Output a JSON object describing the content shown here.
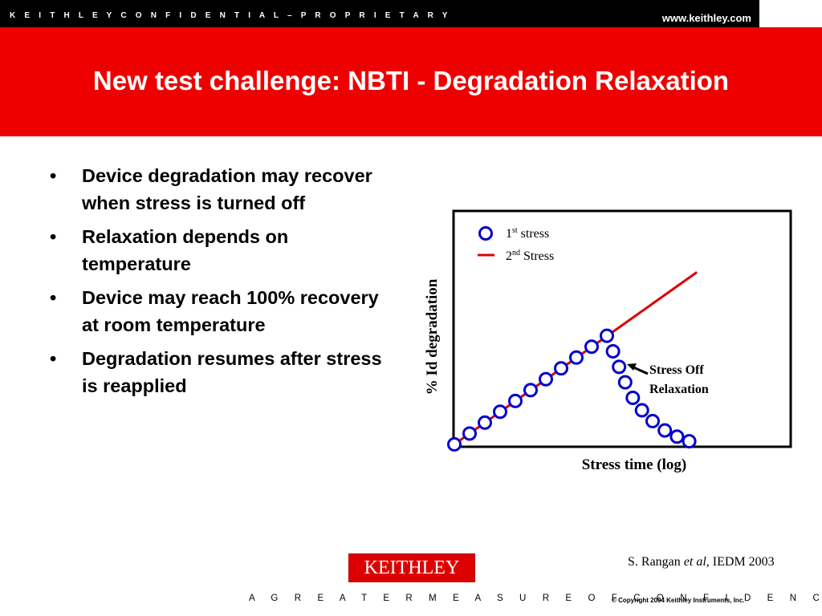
{
  "header": {
    "confidential": "K E I T H L E Y   C O N F I D E N T I A L – P R O P R I E T A R Y",
    "url": "www.keithley.com",
    "title": "New test challenge: NBTI - Degradation Relaxation"
  },
  "bullets": [
    "Device degradation may recover when stress is turned off",
    "Relaxation depends on temperature",
    "Device may reach 100% recovery at room temperature",
    "Degradation resumes after stress is reapplied"
  ],
  "bullet_glyph": "•",
  "colors": {
    "header_red": "#ee0000",
    "series1_blue": "#0000cc",
    "series2_red": "#dd0000"
  },
  "chart_data": {
    "type": "scatter",
    "title": "",
    "xlabel": "Stress time (log)",
    "ylabel": "% Id degradation",
    "grid": false,
    "legend_position": "top-left",
    "ticks_shown": false,
    "series": [
      {
        "name": "1st stress",
        "marker": "open-circle",
        "x": [
          0,
          1,
          2,
          3,
          4,
          5,
          6,
          7,
          8,
          9,
          10,
          10.4,
          10.8,
          11.2,
          11.7,
          12.3,
          13,
          13.8,
          14.6,
          15.4
        ],
        "y": [
          0,
          7,
          14,
          21,
          28,
          35,
          42,
          49,
          56,
          63,
          70,
          60,
          50,
          40,
          30,
          22,
          15,
          9,
          5,
          2
        ]
      },
      {
        "name": "2nd Stress",
        "marker": "line",
        "x": [
          0,
          15.9
        ],
        "y": [
          0,
          111
        ]
      }
    ],
    "annotations": [
      {
        "text_line1": "Stress Off",
        "text_line2": "Relaxation",
        "points_to_x": 11.2,
        "points_to_y": 51
      }
    ],
    "legend": {
      "item1_main": "1",
      "item1_sup": "st",
      "item1_rest": " stress",
      "item2_main": "2",
      "item2_sup": "nd",
      "item2_rest": " Stress"
    },
    "xlim": [
      0,
      22
    ],
    "ylim": [
      0,
      150
    ]
  },
  "footer": {
    "citation_pre": "S. Rangan ",
    "citation_ital": "et al",
    "citation_post": ", IEDM 2003",
    "logo": "KEITHLEY",
    "tagline": "A G R E A T E R   M E A S U R E   O F   C O N F I D E N C E",
    "copyright": "© Copyright 2004 Keithley Instruments, Inc."
  }
}
